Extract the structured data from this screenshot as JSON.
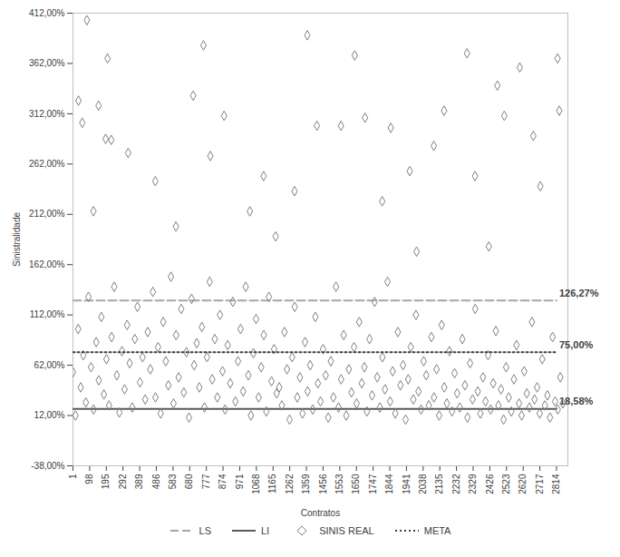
{
  "chart_data": {
    "type": "scatter",
    "x_label": "Contratos",
    "y_label": "Sinistralidade",
    "xlim": [
      1,
      2880
    ],
    "xticks": [
      1,
      98,
      195,
      292,
      389,
      486,
      583,
      680,
      777,
      874,
      971,
      1068,
      1165,
      1262,
      1359,
      1456,
      1553,
      1650,
      1747,
      1844,
      1941,
      2038,
      2135,
      2232,
      2329,
      2426,
      2523,
      2620,
      2717,
      2814
    ],
    "ylim": [
      -38,
      412
    ],
    "yticks": [
      {
        "value": -38,
        "label": "-38,00%"
      },
      {
        "value": 12,
        "label": "12,00%"
      },
      {
        "value": 62,
        "label": "62,00%"
      },
      {
        "value": 112,
        "label": "112,00%"
      },
      {
        "value": 162,
        "label": "162,00%"
      },
      {
        "value": 212,
        "label": "212,00%"
      },
      {
        "value": 262,
        "label": "262,00%"
      },
      {
        "value": 312,
        "label": "312,00%"
      },
      {
        "value": 362,
        "label": "362,00%"
      },
      {
        "value": 412,
        "label": "412,00%"
      }
    ],
    "grid": false,
    "legend": "bottom",
    "x": [
      1,
      16,
      31,
      46,
      61,
      76,
      91,
      106,
      121,
      136,
      151,
      166,
      181,
      196,
      211,
      226,
      241,
      256,
      271,
      286,
      301,
      316,
      331,
      346,
      361,
      376,
      391,
      406,
      421,
      436,
      451,
      466,
      481,
      496,
      511,
      526,
      541,
      556,
      571,
      586,
      601,
      616,
      631,
      646,
      661,
      676,
      691,
      706,
      721,
      736,
      751,
      766,
      781,
      796,
      811,
      826,
      841,
      856,
      871,
      886,
      901,
      916,
      931,
      946,
      961,
      976,
      991,
      1006,
      1021,
      1036,
      1051,
      1066,
      1081,
      1096,
      1111,
      1126,
      1141,
      1156,
      1171,
      1186,
      1201,
      1216,
      1231,
      1246,
      1261,
      1276,
      1291,
      1306,
      1321,
      1336,
      1351,
      1366,
      1381,
      1396,
      1411,
      1426,
      1441,
      1456,
      1471,
      1486,
      1501,
      1516,
      1531,
      1546,
      1561,
      1576,
      1591,
      1606,
      1621,
      1636,
      1651,
      1666,
      1681,
      1696,
      1711,
      1726,
      1741,
      1756,
      1771,
      1786,
      1801,
      1816,
      1831,
      1846,
      1861,
      1876,
      1891,
      1906,
      1921,
      1936,
      1951,
      1966,
      1981,
      1996,
      2011,
      2026,
      2041,
      2056,
      2071,
      2086,
      2101,
      2116,
      2131,
      2146,
      2161,
      2176,
      2191,
      2206,
      2221,
      2236,
      2251,
      2266,
      2281,
      2296,
      2311,
      2326,
      2341,
      2356,
      2371,
      2386,
      2401,
      2416,
      2431,
      2446,
      2461,
      2476,
      2491,
      2506,
      2521,
      2536,
      2551,
      2566,
      2581,
      2596,
      2611,
      2626,
      2641,
      2656,
      2671,
      2686,
      2701,
      2716,
      2731,
      2746,
      2761,
      2776,
      2791,
      2806,
      2821,
      2836,
      2851,
      33,
      55,
      82,
      120,
      150,
      202,
      224,
      191,
      322,
      480,
      700,
      760,
      800,
      880,
      1030,
      1110,
      1290,
      1364,
      1420,
      1560,
      1640,
      1700,
      1800,
      1850,
      1960,
      2100,
      2160,
      2293,
      2340,
      2470,
      2510,
      2600,
      2679,
      2720,
      2820,
      2830,
      2420,
      1180,
      600,
      2000
    ],
    "series": [
      {
        "name": "LS",
        "type": "line",
        "color": "#a6a6a6",
        "line_style": "dashed",
        "x": [
          1,
          2814
        ],
        "values": [
          126.27,
          126.27
        ],
        "value_labels": [
          null,
          "126,27%"
        ]
      },
      {
        "name": "LI",
        "type": "line",
        "color": "#595959",
        "line_style": "solid",
        "x": [
          1,
          2814
        ],
        "values": [
          18.58,
          18.58
        ],
        "value_labels": [
          null,
          "18,58%"
        ]
      },
      {
        "name": "SINIS REAL",
        "type": "scatter",
        "color": "#7f7f7f",
        "marker": "diamond",
        "values": [
          55,
          12,
          98,
          40,
          72,
          25,
          130,
          60,
          18,
          85,
          47,
          110,
          33,
          68,
          22,
          90,
          140,
          52,
          15,
          76,
          38,
          102,
          64,
          20,
          88,
          120,
          45,
          70,
          28,
          95,
          58,
          135,
          30,
          80,
          14,
          105,
          66,
          42,
          150,
          24,
          92,
          50,
          118,
          35,
          75,
          10,
          128,
          62,
          84,
          40,
          100,
          20,
          70,
          145,
          48,
          88,
          30,
          112,
          56,
          18,
          82,
          44,
          125,
          26,
          66,
          98,
          36,
          140,
          52,
          12,
          74,
          108,
          30,
          60,
          92,
          16,
          130,
          46,
          78,
          34,
          40,
          22,
          95,
          58,
          8,
          70,
          120,
          30,
          50,
          14,
          85,
          36,
          62,
          18,
          110,
          44,
          26,
          78,
          52,
          10,
          66,
          30,
          140,
          20,
          48,
          92,
          12,
          58,
          35,
          80,
          24,
          105,
          44,
          60,
          16,
          88,
          32,
          125,
          50,
          20,
          70,
          38,
          145,
          26,
          56,
          14,
          95,
          42,
          62,
          8,
          48,
          80,
          28,
          112,
          36,
          18,
          66,
          52,
          22,
          90,
          30,
          58,
          12,
          102,
          40,
          24,
          76,
          16,
          54,
          34,
          20,
          88,
          42,
          10,
          64,
          28,
          118,
          36,
          14,
          50,
          26,
          72,
          18,
          44,
          96,
          22,
          38,
          8,
          60,
          30,
          16,
          48,
          82,
          24,
          12,
          56,
          34,
          20,
          105,
          28,
          40,
          14,
          68,
          22,
          32,
          10,
          90,
          26,
          18,
          50,
          24,
          325,
          303,
          405,
          215,
          320,
          367,
          286,
          287,
          273,
          245,
          330,
          380,
          270,
          310,
          215,
          250,
          235,
          390,
          300,
          300,
          370,
          308,
          225,
          298,
          255,
          280,
          315,
          372,
          250,
          340,
          310,
          358,
          290,
          240,
          367,
          315,
          180,
          190,
          200,
          175
        ]
      },
      {
        "name": "META",
        "type": "line",
        "color": "#404040",
        "line_style": "dotted",
        "x": [
          1,
          2814
        ],
        "values": [
          75,
          75
        ],
        "value_labels": [
          null,
          "75,00%"
        ]
      }
    ]
  }
}
